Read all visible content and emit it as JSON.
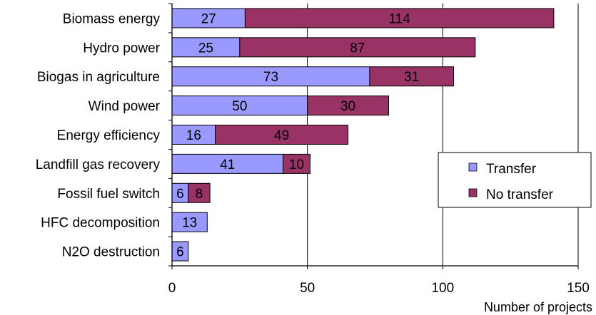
{
  "chart_data": {
    "type": "bar",
    "orientation": "horizontal",
    "stacked": true,
    "categories": [
      "Biomass energy",
      "Hydro power",
      "Biogas in agriculture",
      "Wind power",
      "Energy efficiency",
      "Landfill gas recovery",
      "Fossil fuel switch",
      "HFC decomposition",
      "N2O destruction"
    ],
    "series": [
      {
        "name": "Transfer",
        "color": "#9999ff",
        "values": [
          27,
          25,
          73,
          50,
          16,
          41,
          6,
          13,
          6
        ]
      },
      {
        "name": "No transfer",
        "color": "#993366",
        "values": [
          114,
          87,
          31,
          30,
          49,
          10,
          8,
          0,
          0
        ]
      }
    ],
    "xlabel": "Number of projects",
    "ylabel": "",
    "xlim": [
      0,
      150
    ],
    "xticks": [
      "0",
      "50",
      "100",
      "150"
    ],
    "grid": "vertical",
    "legend": "right"
  }
}
